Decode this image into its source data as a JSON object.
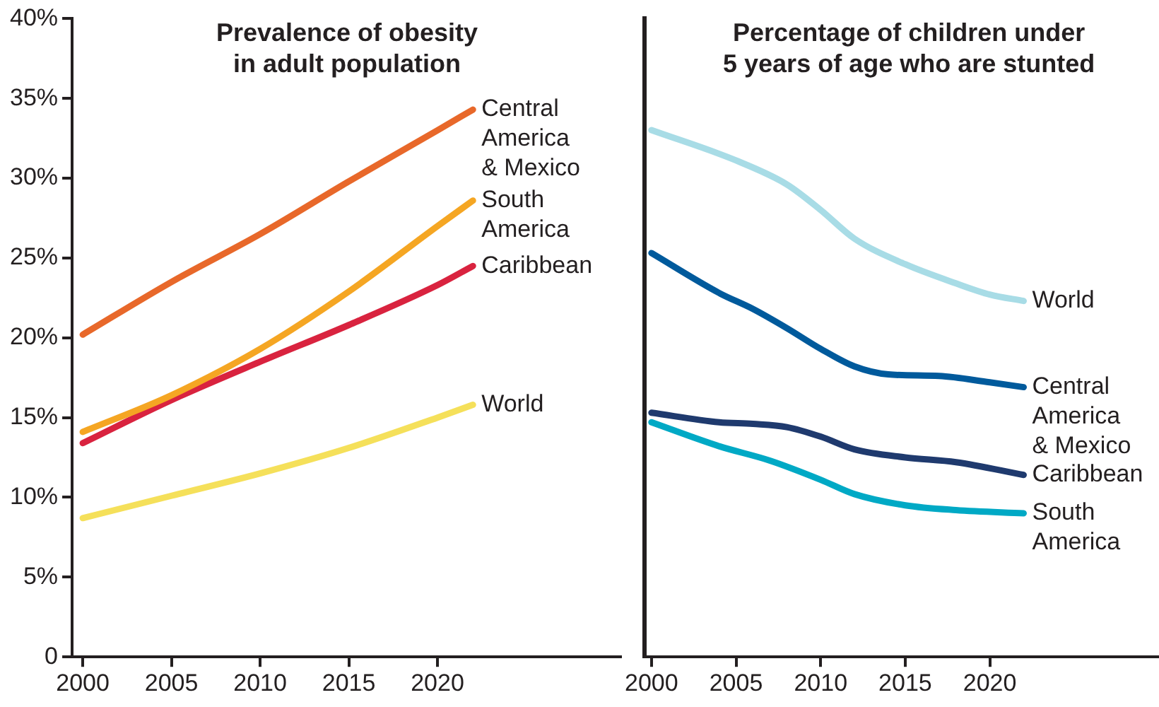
{
  "chart_data": [
    {
      "type": "line",
      "title": "Prevalence of obesity in adult population",
      "xlim": [
        1999.4,
        2030.4
      ],
      "xticks": [
        2000,
        2005,
        2010,
        2015,
        2020
      ],
      "ylim": [
        0,
        40
      ],
      "yticks": [
        {
          "value": 0,
          "label": "0"
        },
        {
          "value": 5,
          "label": "5%"
        },
        {
          "value": 10,
          "label": "10%"
        },
        {
          "value": 15,
          "label": "15%"
        },
        {
          "value": 20,
          "label": "20%"
        },
        {
          "value": 25,
          "label": "25%"
        },
        {
          "value": 30,
          "label": "30%"
        },
        {
          "value": 35,
          "label": "35%"
        },
        {
          "value": 40,
          "label": "40%"
        }
      ],
      "legend": false,
      "marker": "none",
      "series": [
        {
          "name": "Central America & Mexico",
          "color": "#e8682a",
          "x": [
            2000,
            2005,
            2010,
            2015,
            2020,
            2022
          ],
          "values": [
            20.2,
            23.5,
            26.5,
            29.8,
            33.0,
            34.3
          ]
        },
        {
          "name": "South America",
          "color": "#f5a623",
          "x": [
            2000,
            2005,
            2010,
            2015,
            2020,
            2022
          ],
          "values": [
            14.1,
            16.4,
            19.3,
            22.9,
            27.0,
            28.6
          ]
        },
        {
          "name": "Caribbean",
          "color": "#d9233f",
          "x": [
            2000,
            2005,
            2010,
            2015,
            2020,
            2022
          ],
          "values": [
            13.4,
            16.1,
            18.5,
            20.8,
            23.3,
            24.5
          ]
        },
        {
          "name": "World",
          "color": "#f5e05a",
          "x": [
            2000,
            2005,
            2010,
            2015,
            2020,
            2022
          ],
          "values": [
            8.7,
            10.1,
            11.5,
            13.1,
            15.0,
            15.8
          ]
        }
      ]
    },
    {
      "type": "line",
      "title": "Percentage of children under 5 years of age who are stunted",
      "xlim": [
        1999.6,
        2030
      ],
      "xticks": [
        2000,
        2005,
        2010,
        2015,
        2020
      ],
      "ylim": [
        0,
        40
      ],
      "tick_labels": "x",
      "legend": false,
      "marker": "none",
      "series": [
        {
          "name": "World",
          "color": "#a8dce6",
          "x": [
            2000,
            2005,
            2008,
            2010,
            2012,
            2015,
            2018,
            2020,
            2022
          ],
          "values": [
            33.0,
            31.1,
            29.6,
            28.0,
            26.2,
            24.6,
            23.4,
            22.7,
            22.3
          ]
        },
        {
          "name": "Central America & Mexico",
          "color": "#005a9c",
          "x": [
            2000,
            2004,
            2006,
            2008,
            2010,
            2012,
            2014,
            2017,
            2020,
            2022
          ],
          "values": [
            25.3,
            22.8,
            21.8,
            20.6,
            19.3,
            18.2,
            17.7,
            17.6,
            17.2,
            16.9
          ]
        },
        {
          "name": "Caribbean",
          "color": "#1f3a6e",
          "x": [
            2000,
            2004,
            2006,
            2008,
            2010,
            2012,
            2015,
            2018,
            2022
          ],
          "values": [
            15.3,
            14.7,
            14.6,
            14.4,
            13.8,
            13.0,
            12.5,
            12.2,
            11.4
          ]
        },
        {
          "name": "South America",
          "color": "#00a9c5",
          "x": [
            2000,
            2004,
            2007,
            2010,
            2012,
            2015,
            2018,
            2022
          ],
          "values": [
            14.7,
            13.2,
            12.3,
            11.1,
            10.2,
            9.5,
            9.2,
            9.0
          ]
        }
      ]
    }
  ]
}
